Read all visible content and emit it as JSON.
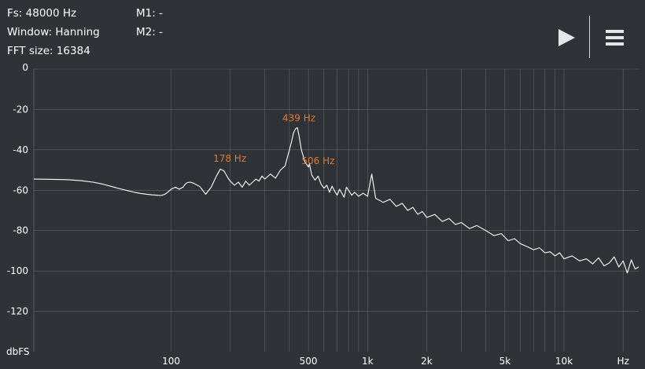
{
  "header": {
    "fs": "Fs: 48000 Hz",
    "window": "Window: Hanning",
    "fft_size": "FFT size: 16384",
    "m1": "M1: -",
    "m2": "M2: -"
  },
  "toolbar": {
    "play_icon": "play-icon",
    "menu_icon": "hamburger-menu-icon"
  },
  "colors": {
    "background": "#2f3237",
    "grid": "#8a8d92",
    "trace": "#ffffff",
    "peak_label": "#e07a32",
    "text": "#ffffff"
  },
  "chart_data": {
    "type": "line",
    "xscale": "log",
    "xlim": [
      20,
      24000
    ],
    "ylim": [
      -140,
      0
    ],
    "ylabel": "dbFS",
    "xlabel": "Hz",
    "grid": true,
    "y_ticks": [
      "0",
      "-20",
      "-40",
      "-60",
      "-80",
      "-100",
      "-120"
    ],
    "y_tick_values": [
      0,
      -20,
      -40,
      -60,
      -80,
      -100,
      -120
    ],
    "x_tick_labels": [
      "100",
      "500",
      "1k",
      "2k",
      "5k",
      "10k",
      "Hz"
    ],
    "x_tick_values": [
      100,
      500,
      1000,
      2000,
      5000,
      10000,
      20000
    ],
    "x_grid_values": [
      100,
      200,
      300,
      400,
      500,
      600,
      700,
      800,
      900,
      1000,
      2000,
      3000,
      4000,
      5000,
      6000,
      7000,
      8000,
      9000,
      10000,
      20000
    ],
    "peaks": [
      {
        "label": "178 Hz",
        "x": 178,
        "y": -49
      },
      {
        "label": "439 Hz",
        "x": 439,
        "y": -29
      },
      {
        "label": "506 Hz",
        "x": 506,
        "y": -47
      }
    ],
    "series": [
      {
        "x": [
          20,
          25,
          30,
          35,
          40,
          45,
          50,
          55,
          60,
          65,
          70,
          75,
          80,
          85,
          88,
          90,
          93,
          96,
          100,
          105,
          110,
          115,
          118,
          121,
          125,
          130,
          140,
          150,
          160,
          170,
          178,
          186,
          195,
          200,
          210,
          220,
          230,
          240,
          250,
          260,
          270,
          280,
          290,
          300,
          320,
          340,
          360,
          380,
          400,
          410,
          420,
          430,
          439,
          448,
          460,
          480,
          500,
          506,
          520,
          540,
          560,
          580,
          600,
          620,
          640,
          660,
          680,
          700,
          720,
          740,
          760,
          780,
          800,
          830,
          860,
          900,
          950,
          1000,
          1050,
          1100,
          1200,
          1300,
          1400,
          1500,
          1600,
          1700,
          1800,
          1900,
          2000,
          2200,
          2400,
          2600,
          2800,
          3000,
          3300,
          3600,
          4000,
          4400,
          4800,
          5200,
          5600,
          6000,
          6500,
          7000,
          7500,
          8000,
          8500,
          9000,
          9500,
          10000,
          11000,
          12000,
          13000,
          14000,
          15000,
          16000,
          17000,
          18000,
          19000,
          20000,
          21000,
          22000,
          23000,
          24000
        ],
        "y": [
          -54.5,
          -54.6,
          -54.8,
          -55.3,
          -56.0,
          -57.0,
          -58.2,
          -59.3,
          -60.2,
          -61.0,
          -61.6,
          -62.0,
          -62.3,
          -62.5,
          -62.6,
          -62.5,
          -62.0,
          -61.0,
          -59.5,
          -58.5,
          -59.5,
          -58.5,
          -57.0,
          -56.2,
          -56.0,
          -56.5,
          -58.2,
          -62.0,
          -58.5,
          -53.0,
          -49.5,
          -50.5,
          -54.0,
          -55.5,
          -57.5,
          -56.0,
          -58.5,
          -55.5,
          -57.5,
          -56.0,
          -54.5,
          -55.5,
          -53.0,
          -54.5,
          -52.0,
          -54.0,
          -50.0,
          -48.0,
          -40.0,
          -36.0,
          -31.5,
          -29.5,
          -29.0,
          -33.0,
          -40.0,
          -46.0,
          -48.5,
          -47.0,
          -52.5,
          -55.0,
          -53.0,
          -57.0,
          -59.0,
          -57.5,
          -61.0,
          -58.0,
          -60.5,
          -62.5,
          -59.5,
          -61.5,
          -63.5,
          -58.5,
          -60.0,
          -62.5,
          -61.0,
          -63.0,
          -61.5,
          -63.0,
          -52.0,
          -64.0,
          -66.0,
          -64.5,
          -68.0,
          -66.5,
          -70.0,
          -68.5,
          -72.0,
          -70.5,
          -73.5,
          -72.0,
          -75.5,
          -74.0,
          -77.0,
          -76.0,
          -79.0,
          -77.5,
          -80.0,
          -82.5,
          -81.5,
          -85.0,
          -84.0,
          -86.5,
          -88.0,
          -89.5,
          -88.5,
          -91.0,
          -90.5,
          -92.5,
          -91.0,
          -94.0,
          -92.5,
          -95.0,
          -94.0,
          -96.5,
          -93.5,
          -97.5,
          -96.0,
          -93.0,
          -98.0,
          -95.0,
          -101.0,
          -94.5,
          -99.0,
          -98.0
        ]
      }
    ]
  }
}
